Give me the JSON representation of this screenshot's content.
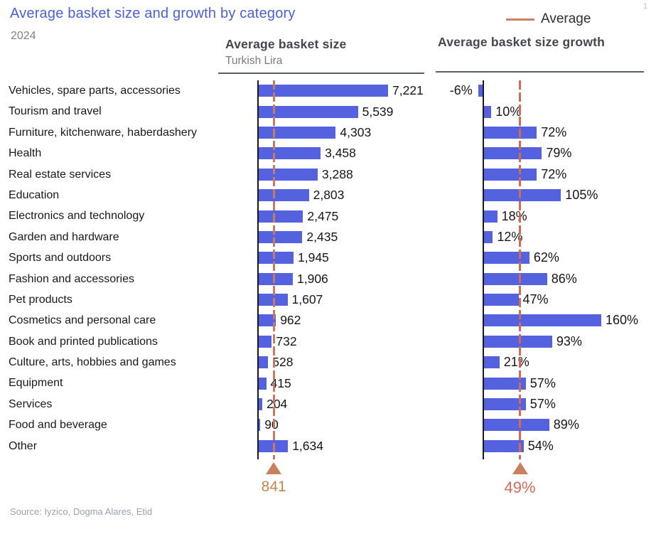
{
  "title": "Average basket size and growth by category",
  "subtitle_year": "2024",
  "footnote_marker": "1",
  "legend": {
    "label": "Average"
  },
  "panels": {
    "left": {
      "title": "Average basket size",
      "subtitle": "Turkish Lira"
    },
    "right": {
      "title": "Average basket size growth"
    }
  },
  "source": "Source: Iyzico, Dogma Alares, Etid",
  "colors": {
    "bar": "#5562e0",
    "title": "#4a5fd8",
    "average_line": "#c97a5f",
    "average_line_right": "#d06c56",
    "average_marker": "#c9805f",
    "avg_left_label": "#c5854f",
    "avg_right_label": "#d96a57",
    "legend_line": "#cc7e66"
  },
  "chart_data": [
    {
      "type": "bar",
      "orientation": "horizontal",
      "title": "Average basket size",
      "unit": "Turkish Lira",
      "legend": [
        "Average"
      ],
      "categories": [
        "Vehicles, spare parts, accessories",
        "Tourism and travel",
        "Furniture, kitchenware, haberdashery",
        "Health",
        "Real estate services",
        "Education",
        "Electronics and technology",
        "Garden and hardware",
        "Sports and outdoors",
        "Fashion and accessories",
        "Pet products",
        "Cosmetics and personal care",
        "Book and printed publications",
        "Culture, arts, hobbies and games",
        "Equipment",
        "Services",
        "Food and beverage",
        "Other"
      ],
      "values": [
        7221,
        5539,
        4303,
        3458,
        3288,
        2803,
        2475,
        2435,
        1945,
        1906,
        1607,
        962,
        732,
        528,
        415,
        204,
        90,
        1634
      ],
      "value_labels": [
        "7,221",
        "5,539",
        "4,303",
        "3,458",
        "3,288",
        "2,803",
        "2,475",
        "2,435",
        "1,945",
        "1,906",
        "1,607",
        "962",
        "732",
        "528",
        "415",
        "204",
        "90",
        "1,634"
      ],
      "average": 841,
      "average_label": "841",
      "xlim": [
        0,
        7800
      ],
      "grid": false
    },
    {
      "type": "bar",
      "orientation": "horizontal",
      "title": "Average basket size growth",
      "unit": "percent",
      "legend": [
        "Average"
      ],
      "categories": [
        "Vehicles, spare parts, accessories",
        "Tourism and travel",
        "Furniture, kitchenware, haberdashery",
        "Health",
        "Real estate services",
        "Education",
        "Electronics and technology",
        "Garden and hardware",
        "Sports and outdoors",
        "Fashion and accessories",
        "Pet products",
        "Cosmetics and personal care",
        "Book and printed publications",
        "Culture, arts, hobbies and games",
        "Equipment",
        "Services",
        "Food and beverage",
        "Other"
      ],
      "values": [
        -6,
        10,
        72,
        79,
        72,
        105,
        18,
        12,
        62,
        86,
        47,
        160,
        93,
        21,
        57,
        57,
        89,
        54
      ],
      "value_labels": [
        "-6%",
        "10%",
        "72%",
        "79%",
        "72%",
        "105%",
        "18%",
        "12%",
        "62%",
        "86%",
        "47%",
        "160%",
        "93%",
        "21%",
        "57%",
        "57%",
        "89%",
        "54%"
      ],
      "average": 49,
      "average_label": "49%",
      "xlim": [
        -10,
        170
      ],
      "grid": false
    }
  ]
}
